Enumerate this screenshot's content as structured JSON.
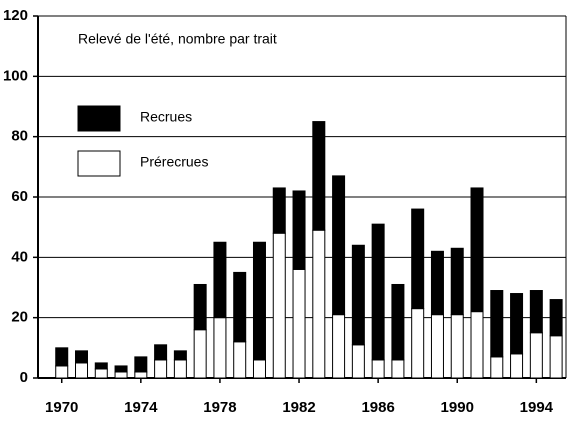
{
  "chart_data": {
    "type": "bar",
    "stacked": true,
    "title": "Relevé de l'été, nombre par trait",
    "x": [
      1970,
      1971,
      1972,
      1973,
      1974,
      1975,
      1976,
      1977,
      1978,
      1979,
      1980,
      1981,
      1982,
      1983,
      1984,
      1985,
      1986,
      1987,
      1988,
      1989,
      1990,
      1991,
      1992,
      1993,
      1994,
      1995
    ],
    "series": [
      {
        "name": "Recrues",
        "color": "#000000",
        "values": [
          6,
          4,
          2,
          2,
          5,
          5,
          3,
          15,
          25,
          23,
          39,
          15,
          26,
          36,
          46,
          33,
          45,
          25,
          33,
          21,
          22,
          41,
          22,
          20,
          14,
          12
        ]
      },
      {
        "name": "Prérecrues",
        "color": "#ffffff",
        "values": [
          4,
          5,
          3,
          2,
          2,
          6,
          6,
          16,
          20,
          12,
          6,
          48,
          36,
          49,
          21,
          11,
          6,
          6,
          23,
          21,
          21,
          22,
          7,
          8,
          15,
          14
        ]
      }
    ],
    "xlim": [
      1968.8,
      1995.5
    ],
    "xticks": [
      1970,
      1974,
      1978,
      1982,
      1986,
      1990,
      1994
    ],
    "ylim": [
      0,
      120
    ],
    "yticks": [
      0,
      20,
      40,
      60,
      80,
      100,
      120
    ],
    "grid": true
  }
}
